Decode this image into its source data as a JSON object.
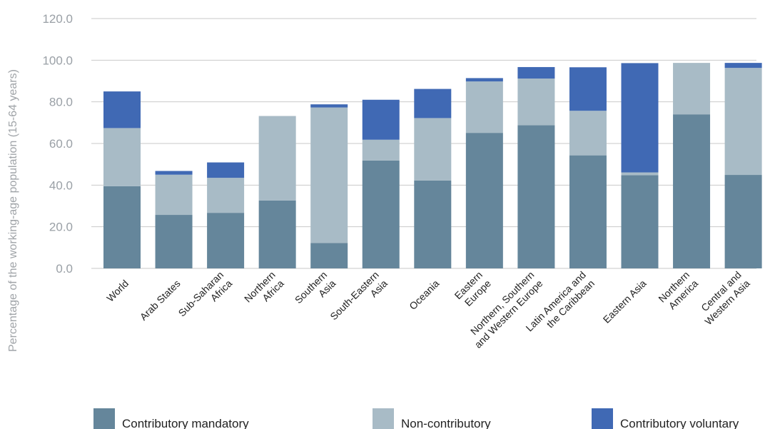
{
  "chart_data": {
    "type": "bar",
    "stacked": true,
    "title": "",
    "xlabel": "",
    "ylabel": "Percentage of the working-age population (15-64 years)",
    "ylim": [
      0,
      120
    ],
    "yticks": [
      "0.0",
      "20.0",
      "40.0",
      "60.0",
      "80.0",
      "100.0",
      "120.0"
    ],
    "grid": true,
    "legend_position": "bottom",
    "categories": [
      "World",
      "Arab States",
      "Sub-Saharan Africa",
      "Northern Africa",
      "Southern Asia",
      "South-Eastern Asia",
      "Oceania",
      "Eastern Europe",
      "Northern, Southern and Western Europe",
      "Latin America and the Caribbean",
      "Eastern Asia",
      "Northern America",
      "Central and Western Asia"
    ],
    "category_label_lines": [
      [
        "World"
      ],
      [
        "Arab States"
      ],
      [
        "Sub-Saharan",
        "Africa"
      ],
      [
        "Northern",
        "Africa"
      ],
      [
        "Southern",
        "Asia"
      ],
      [
        "South-Eastern",
        "Asia"
      ],
      [
        "Oceania"
      ],
      [
        "Eastern",
        "Europe"
      ],
      [
        "Northern, Southern",
        "and Western Europe"
      ],
      [
        "Latin America and",
        "the Caribbean"
      ],
      [
        "Eastern Asia"
      ],
      [
        "Northern",
        "America"
      ],
      [
        "Central and",
        "Western Asia"
      ]
    ],
    "series": [
      {
        "name": "Contributory mandatory",
        "color": "#65869b",
        "values": [
          39.5,
          25.7,
          26.7,
          32.6,
          12.2,
          51.8,
          42.2,
          65.1,
          68.8,
          54.3,
          44.8,
          74.0,
          44.9
        ]
      },
      {
        "name": "Non-contributory",
        "color": "#a8bbc6",
        "values": [
          27.9,
          19.3,
          16.8,
          40.6,
          65.1,
          10.0,
          30.0,
          24.7,
          22.4,
          21.4,
          1.3,
          24.7,
          51.4
        ]
      },
      {
        "name": "Contributory voluntary",
        "color": "#4069b4",
        "values": [
          17.6,
          1.8,
          7.4,
          0.0,
          1.5,
          19.2,
          14.0,
          1.6,
          5.5,
          20.9,
          52.5,
          0.0,
          2.4
        ]
      }
    ]
  }
}
